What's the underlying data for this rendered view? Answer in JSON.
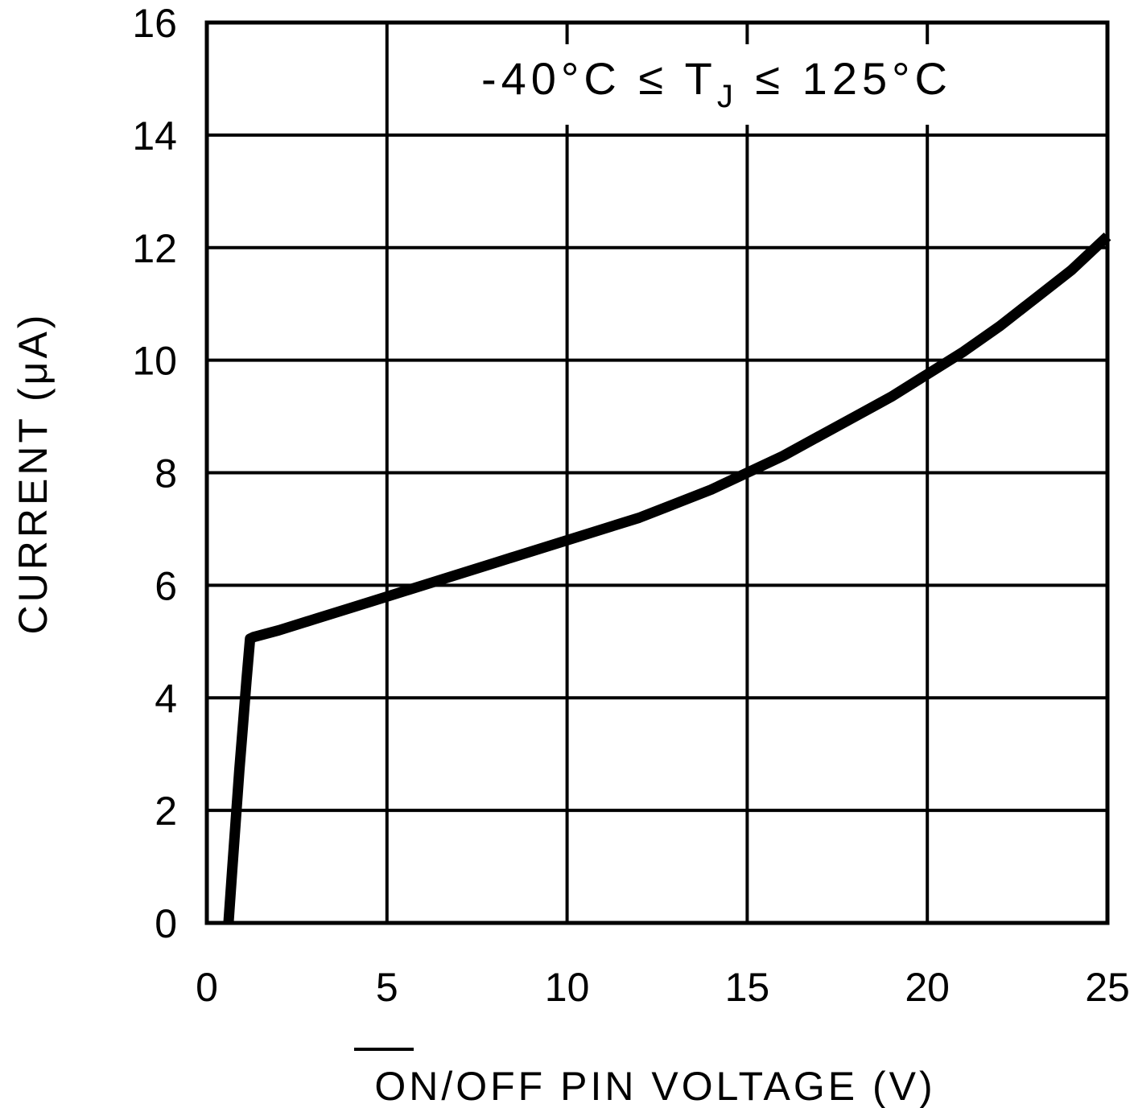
{
  "chart_data": {
    "type": "line",
    "xlabel_prefix": "ON",
    "xlabel_suffix": "/OFF PIN VOLTAGE (V)",
    "ylabel": "CURRENT (μA)",
    "annotation_left": "-40°C ≤ T",
    "annotation_sub": "J",
    "annotation_right": " ≤ 125°C",
    "xlim": [
      0,
      25
    ],
    "ylim": [
      0,
      16
    ],
    "xticks": [
      0,
      5,
      10,
      15,
      20,
      25
    ],
    "yticks": [
      0,
      2,
      4,
      6,
      8,
      10,
      12,
      14,
      16
    ],
    "grid": true,
    "line_color": "#000000",
    "series": [
      {
        "x": [
          0.6,
          0.7,
          0.8,
          0.9,
          1.0,
          1.1,
          1.2,
          1.3,
          2,
          3,
          4,
          5,
          6,
          7,
          8,
          9,
          10,
          11,
          12,
          13,
          14,
          15,
          16,
          17,
          18,
          19,
          20,
          21,
          22,
          23,
          24,
          25
        ],
        "y": [
          0,
          0.9,
          1.8,
          2.7,
          3.5,
          4.3,
          5.05,
          5.08,
          5.2,
          5.4,
          5.6,
          5.8,
          6.0,
          6.2,
          6.4,
          6.6,
          6.8,
          7.0,
          7.2,
          7.45,
          7.7,
          8.0,
          8.3,
          8.65,
          9.0,
          9.35,
          9.75,
          10.15,
          10.6,
          11.1,
          11.6,
          12.2
        ]
      }
    ]
  }
}
